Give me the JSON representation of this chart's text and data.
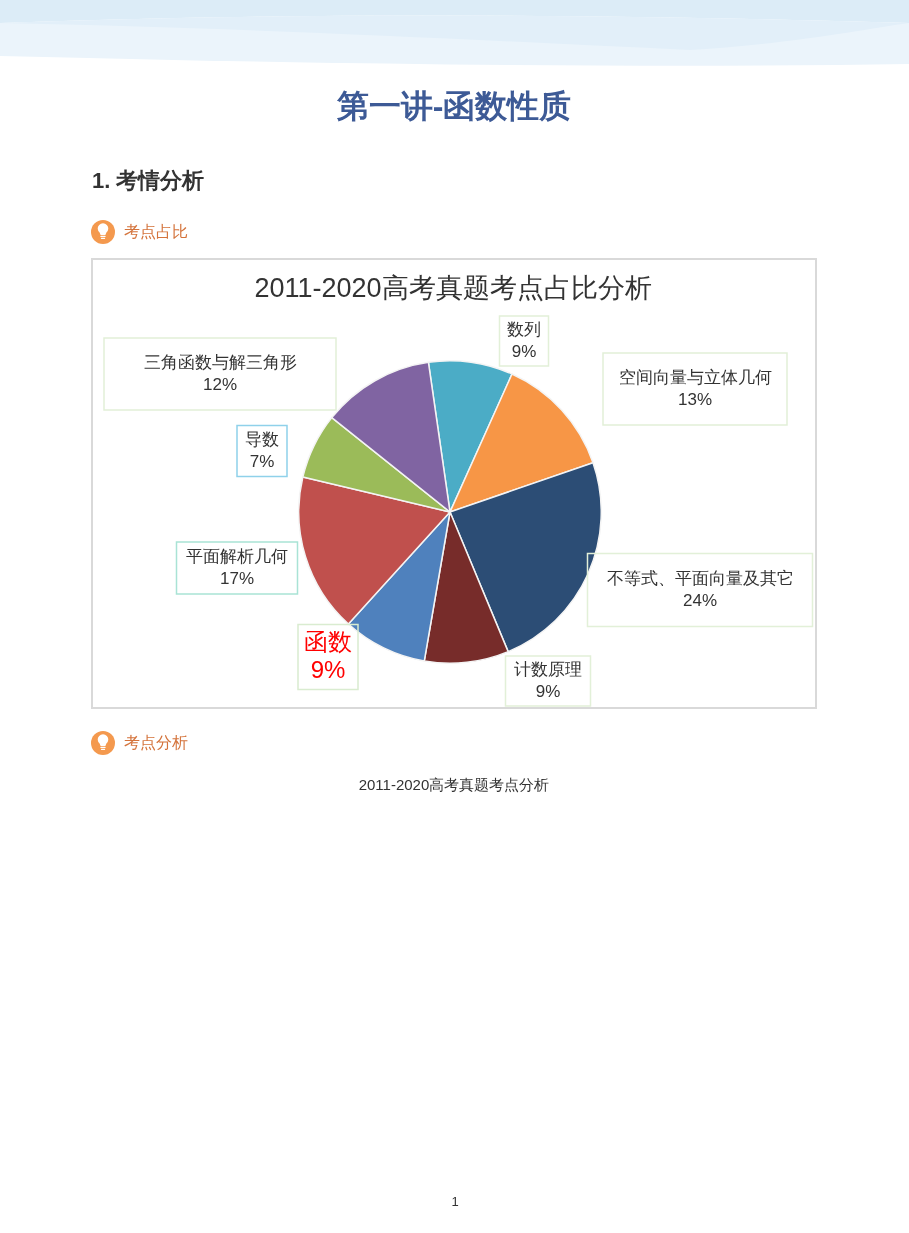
{
  "chart_data": {
    "type": "pie",
    "title": "2011-2020高考真题考点占比分析",
    "categories": [
      "数列",
      "空间向量与立体几何",
      "不等式、平面向量及其它",
      "计数原理",
      "函数",
      "平面解析几何",
      "导数",
      "三角函数与解三角形"
    ],
    "values": [
      9,
      13,
      24,
      9,
      9,
      17,
      7,
      12
    ],
    "colors": [
      "#4bacc6",
      "#f79646",
      "#2c4d75",
      "#772c2a",
      "#4f81bd",
      "#c0504d",
      "#9bbb59",
      "#8064a2"
    ],
    "value_labels": [
      "9%",
      "13%",
      "24%",
      "9%",
      "9%",
      "17%",
      "7%",
      "12%"
    ],
    "legend": false,
    "annotations": [
      "第一讲-函数性质",
      "1. 考情分析",
      "考点占比",
      "考点分析",
      "2011-2020高考真题考点分析",
      "1"
    ]
  }
}
